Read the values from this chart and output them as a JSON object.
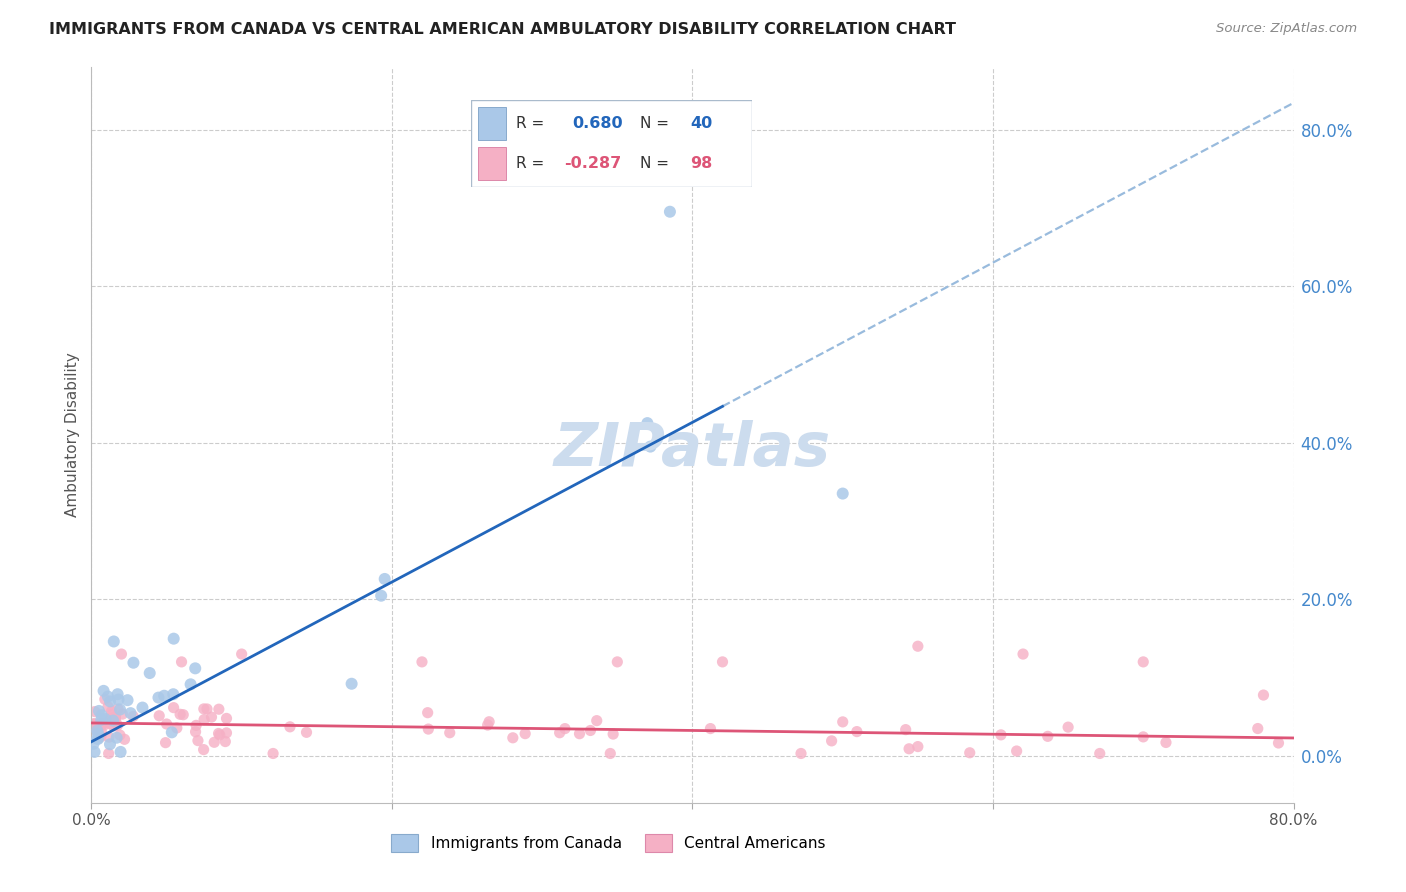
{
  "title": "IMMIGRANTS FROM CANADA VS CENTRAL AMERICAN AMBULATORY DISABILITY CORRELATION CHART",
  "source": "Source: ZipAtlas.com",
  "ylabel": "Ambulatory Disability",
  "xlim": [
    0.0,
    0.8
  ],
  "ylim": [
    -0.06,
    0.88
  ],
  "ytick_vals": [
    0.0,
    0.2,
    0.4,
    0.6,
    0.8
  ],
  "ytick_labels": [
    "0.0%",
    "20.0%",
    "40.0%",
    "60.0%",
    "80.0%"
  ],
  "xtick_vals": [
    0.0,
    0.2,
    0.4,
    0.6,
    0.8
  ],
  "xtick_labels": [
    "0.0%",
    "",
    "",
    "",
    "80.0%"
  ],
  "blue_R": 0.68,
  "blue_N": 40,
  "pink_R": -0.287,
  "pink_N": 98,
  "blue_scatter_color": "#aac8e8",
  "pink_scatter_color": "#f5b0c5",
  "blue_line_color": "#2266bb",
  "pink_line_color": "#dd5577",
  "dashed_line_color": "#99bbdd",
  "grid_color": "#cccccc",
  "title_color": "#222222",
  "right_label_color": "#4488cc",
  "source_color": "#888888",
  "watermark_color": "#ccdcee",
  "background": "#ffffff",
  "legend_border_color": "#aabbcc",
  "blue_box_edge": "#88aacc",
  "pink_box_edge": "#dd88aa"
}
